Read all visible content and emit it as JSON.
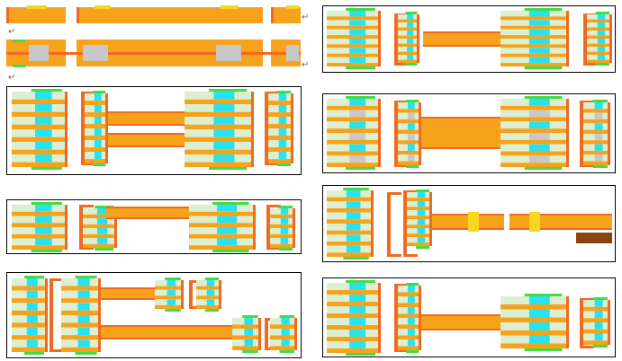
{
  "colors": {
    "orange": "#f7a21b",
    "dark_orange": "#ef6a23",
    "cyan": "#27e3ef",
    "light_green": "#dcefd2",
    "green": "#44dc44",
    "yellow": "#f7d61f",
    "gray": "#c8c8c8",
    "brown": "#8b4513",
    "frame": "#000000"
  },
  "paragraph_mark": "↵",
  "panels_count": 9
}
